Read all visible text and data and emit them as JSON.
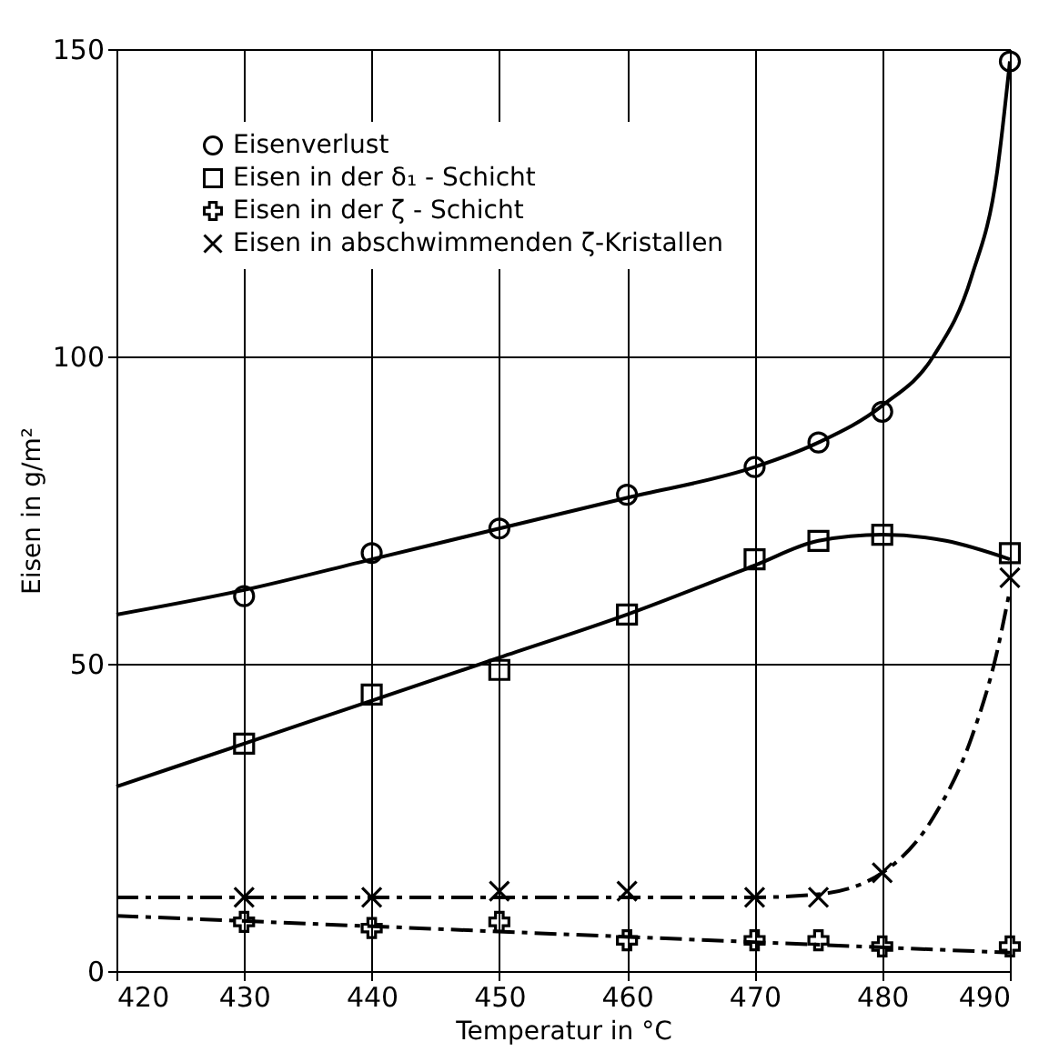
{
  "chart_data": {
    "type": "scatter",
    "xlabel": "Temperatur in °C",
    "ylabel": "Eisen in g/m²",
    "xlim": [
      420,
      490
    ],
    "ylim": [
      0,
      150
    ],
    "xticks": [
      420,
      430,
      440,
      450,
      460,
      470,
      480,
      490
    ],
    "yticks": [
      0,
      50,
      100,
      150
    ],
    "grid": true,
    "legend": "top left",
    "series": [
      {
        "type": "line",
        "color": "#000000",
        "line_style": "solid",
        "x": [
          420,
          430,
          440,
          450,
          460,
          470,
          475,
          480,
          484,
          487,
          489,
          490
        ],
        "values": [
          58,
          62,
          67,
          72,
          77,
          82,
          86,
          92,
          100,
          113,
          130,
          148
        ]
      },
      {
        "type": "line",
        "color": "#000000",
        "line_style": "solid",
        "x": [
          420,
          430,
          440,
          450,
          460,
          470,
          475,
          480,
          485,
          490
        ],
        "values": [
          30,
          37,
          44,
          51,
          58,
          66,
          70,
          71,
          70,
          67
        ]
      },
      {
        "type": "line",
        "color": "#000000",
        "line_style": "dashed",
        "x": [
          420,
          490
        ],
        "values": [
          9,
          3
        ]
      },
      {
        "type": "line",
        "color": "#000000",
        "line_style": "dashed",
        "x": [
          420,
          470,
          475,
          480,
          484,
          487,
          489,
          490
        ],
        "values": [
          12,
          12,
          12.5,
          16,
          25,
          38,
          52,
          62
        ]
      },
      {
        "name": "Eisenverlust",
        "color": "#000000",
        "marker": "circle",
        "x": [
          430,
          440,
          450,
          460,
          470,
          475,
          480,
          490
        ],
        "values": [
          61,
          68,
          72,
          77.5,
          82,
          86,
          91,
          148
        ]
      },
      {
        "name": "Eisen in der δ₁ - Schicht",
        "color": "#000000",
        "marker": "square",
        "x": [
          430,
          440,
          450,
          460,
          470,
          475,
          480,
          490
        ],
        "values": [
          37,
          45,
          49,
          58,
          67,
          70,
          71,
          68
        ]
      },
      {
        "name": "Eisen in der ζ - Schicht",
        "color": "#000000",
        "marker": "plus",
        "x": [
          430,
          440,
          450,
          460,
          470,
          475,
          480,
          490
        ],
        "values": [
          8,
          7,
          8,
          5,
          5,
          5,
          4,
          4
        ]
      },
      {
        "name": "Eisen in abschwimmenden ζ-Kristallen",
        "color": "#000000",
        "marker": "cross",
        "x": [
          430,
          440,
          450,
          460,
          470,
          475,
          480,
          490
        ],
        "values": [
          12,
          12,
          13,
          13,
          12,
          12,
          16,
          64
        ]
      }
    ]
  }
}
